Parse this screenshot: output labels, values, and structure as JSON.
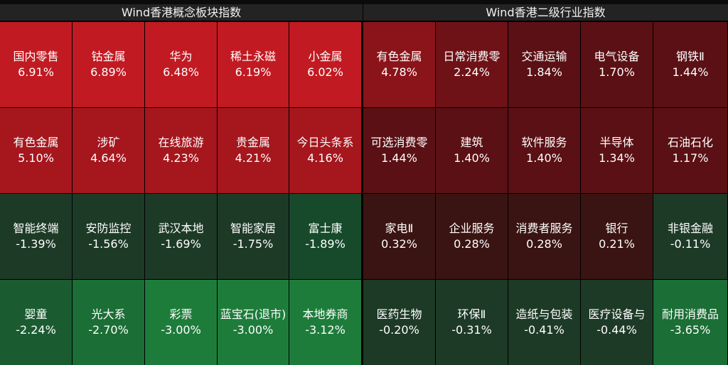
{
  "left_panel": {
    "title": "Wind香港概念板块指数",
    "tiles": [
      {
        "name": "国内零售",
        "pct": "6.91%"
      },
      {
        "name": "钴金属",
        "pct": "6.89%"
      },
      {
        "name": "华为",
        "pct": "6.48%"
      },
      {
        "name": "稀土永磁",
        "pct": "6.19%"
      },
      {
        "name": "小金属",
        "pct": "6.02%"
      },
      {
        "name": "有色金属",
        "pct": "5.10%"
      },
      {
        "name": "涉矿",
        "pct": "4.64%"
      },
      {
        "name": "在线旅游",
        "pct": "4.23%"
      },
      {
        "name": "贵金属",
        "pct": "4.21%"
      },
      {
        "name": "今日头条系",
        "pct": "4.16%"
      },
      {
        "name": "智能终端",
        "pct": "-1.39%"
      },
      {
        "name": "安防监控",
        "pct": "-1.56%"
      },
      {
        "name": "武汉本地",
        "pct": "-1.69%"
      },
      {
        "name": "智能家居",
        "pct": "-1.75%"
      },
      {
        "name": "富士康",
        "pct": "-1.89%"
      },
      {
        "name": "婴童",
        "pct": "-2.24%"
      },
      {
        "name": "光大系",
        "pct": "-2.70%"
      },
      {
        "name": "彩票",
        "pct": "-3.00%"
      },
      {
        "name": "蓝宝石(退市)",
        "pct": "-3.00%"
      },
      {
        "name": "本地券商",
        "pct": "-3.12%"
      }
    ]
  },
  "right_panel": {
    "title": "Wind香港二级行业指数",
    "tiles": [
      {
        "name": "有色金属",
        "pct": "4.78%"
      },
      {
        "name": "日常消费零",
        "pct": "2.24%"
      },
      {
        "name": "交通运输",
        "pct": "1.84%"
      },
      {
        "name": "电气设备",
        "pct": "1.70%"
      },
      {
        "name": "钢铁Ⅱ",
        "pct": "1.44%"
      },
      {
        "name": "可选消费零",
        "pct": "1.44%"
      },
      {
        "name": "建筑",
        "pct": "1.40%"
      },
      {
        "name": "软件服务",
        "pct": "1.40%"
      },
      {
        "name": "半导体",
        "pct": "1.34%"
      },
      {
        "name": "石油石化",
        "pct": "1.17%"
      },
      {
        "name": "家电Ⅱ",
        "pct": "0.32%"
      },
      {
        "name": "企业服务",
        "pct": "0.28%"
      },
      {
        "name": "消费者服务",
        "pct": "0.28%"
      },
      {
        "name": "银行",
        "pct": "0.21%"
      },
      {
        "name": "非银金融",
        "pct": "-0.11%"
      },
      {
        "name": "医药生物",
        "pct": "-0.20%"
      },
      {
        "name": "环保Ⅱ",
        "pct": "-0.31%"
      },
      {
        "name": "造纸与包装",
        "pct": "-0.41%"
      },
      {
        "name": "医疗设备与",
        "pct": "-0.44%"
      },
      {
        "name": "耐用消费品",
        "pct": "-3.65%"
      }
    ]
  },
  "colors": {
    "strong_red": "#c21a22",
    "red": "#a5161d",
    "dark_red": "#6e1217",
    "neutral_dark": "#3a1412",
    "dark_green": "#1d3a26",
    "green": "#1a5c30",
    "strong_green": "#1e7c3b"
  }
}
